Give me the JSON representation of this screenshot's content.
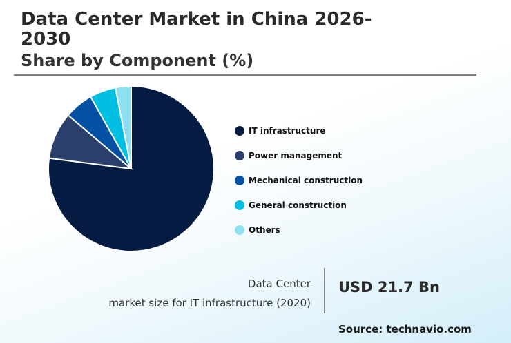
{
  "header": {
    "title": "Data Center Market in China 2026-2030",
    "subtitle": "Share by Component (%)"
  },
  "chart_data": {
    "type": "pie",
    "categories": [
      "IT infrastructure",
      "Power management",
      "Mechanical construction",
      "General construction",
      "Others"
    ],
    "values": [
      75.5,
      9.0,
      5.5,
      5.0,
      3.0
    ],
    "colors": [
      "#051c42",
      "#2b3f6c",
      "#0451a3",
      "#00bfe3",
      "#8fe0f2"
    ],
    "legend_position": "right"
  },
  "stat": {
    "label_line1": "Data Center",
    "label_line2": "market size for IT infrastructure (2020)",
    "value": "USD 21.7 Bn"
  },
  "source": "Source: technavio.com"
}
